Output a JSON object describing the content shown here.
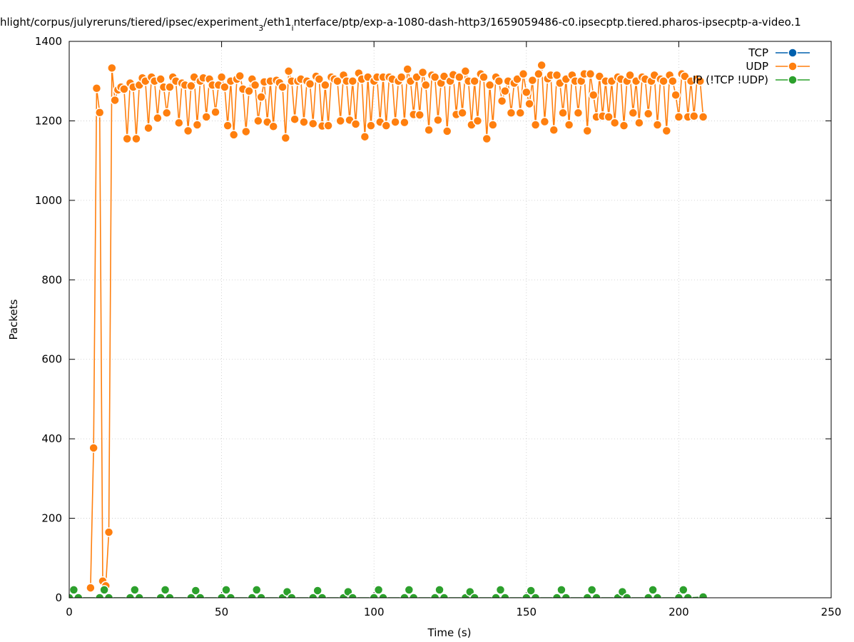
{
  "chart_data": {
    "type": "line",
    "title": [
      "hlight/corpus/julyreruns/tiered/ipsec/experiment",
      "3",
      "/eth1",
      "i",
      "nterface/ptp/exp-a-1080-dash-http3/1659059486-c0.ipsecptp.tiered.pharos-ipsecptp-a-video.1"
    ],
    "x_label": "Time (s)",
    "y_label": "Packets",
    "xlim": [
      0,
      250
    ],
    "xticks": [
      0,
      50,
      100,
      150,
      200,
      250
    ],
    "ylim": [
      0,
      1400
    ],
    "yticks": [
      0,
      200,
      400,
      600,
      800,
      1000,
      1200,
      1400
    ],
    "grid": true,
    "legend": "top-right",
    "series": [
      {
        "name": "TCP",
        "color": "#0060ad",
        "x": [],
        "values": []
      },
      {
        "name": "UDP",
        "color": "#ff7f0e",
        "x": [
          7,
          8,
          9,
          10,
          11,
          12,
          13,
          14,
          15,
          16,
          17,
          18,
          19,
          20,
          21,
          22,
          23,
          24,
          25,
          26,
          27,
          28,
          29,
          30,
          31,
          32,
          33,
          34,
          35,
          36,
          37,
          38,
          39,
          40,
          41,
          42,
          43,
          44,
          45,
          46,
          47,
          48,
          49,
          50,
          51,
          52,
          53,
          54,
          55,
          56,
          57,
          58,
          59,
          60,
          61,
          62,
          63,
          64,
          65,
          66,
          67,
          68,
          69,
          70,
          71,
          72,
          73,
          74,
          75,
          76,
          77,
          78,
          79,
          80,
          81,
          82,
          83,
          84,
          85,
          86,
          87,
          88,
          89,
          90,
          91,
          92,
          93,
          94,
          95,
          96,
          97,
          98,
          99,
          100,
          101,
          102,
          103,
          104,
          105,
          106,
          107,
          108,
          109,
          110,
          111,
          112,
          113,
          114,
          115,
          116,
          117,
          118,
          119,
          120,
          121,
          122,
          123,
          124,
          125,
          126,
          127,
          128,
          129,
          130,
          131,
          132,
          133,
          134,
          135,
          136,
          137,
          138,
          139,
          140,
          141,
          142,
          143,
          144,
          145,
          146,
          147,
          148,
          149,
          150,
          151,
          152,
          153,
          154,
          155,
          156,
          157,
          158,
          159,
          160,
          161,
          162,
          163,
          164,
          165,
          166,
          167,
          168,
          169,
          170,
          171,
          172,
          173,
          174,
          175,
          176,
          177,
          178,
          179,
          180,
          181,
          182,
          183,
          184,
          185,
          186,
          187,
          188,
          189,
          190,
          191,
          192,
          193,
          194,
          195,
          196,
          197,
          198,
          199,
          200,
          201,
          202,
          203,
          204,
          205,
          206,
          207,
          208
        ],
        "values": [
          25,
          377,
          1282,
          1221,
          42,
          30,
          165,
          1333,
          1252,
          1278,
          1285,
          1280,
          1155,
          1295,
          1285,
          1155,
          1290,
          1308,
          1300,
          1182,
          1310,
          1300,
          1207,
          1305,
          1285,
          1220,
          1285,
          1310,
          1300,
          1195,
          1295,
          1290,
          1175,
          1288,
          1310,
          1190,
          1300,
          1308,
          1210,
          1305,
          1290,
          1222,
          1290,
          1310,
          1285,
          1188,
          1300,
          1165,
          1305,
          1313,
          1280,
          1173,
          1275,
          1305,
          1290,
          1200,
          1260,
          1298,
          1197,
          1300,
          1186,
          1302,
          1296,
          1285,
          1157,
          1325,
          1300,
          1204,
          1300,
          1305,
          1197,
          1300,
          1293,
          1193,
          1312,
          1305,
          1187,
          1290,
          1188,
          1310,
          1305,
          1300,
          1200,
          1315,
          1300,
          1202,
          1300,
          1192,
          1320,
          1305,
          1160,
          1310,
          1188,
          1300,
          1310,
          1197,
          1310,
          1188,
          1310,
          1305,
          1197,
          1300,
          1310,
          1196,
          1330,
          1300,
          1216,
          1310,
          1215,
          1322,
          1290,
          1177,
          1315,
          1310,
          1202,
          1295,
          1312,
          1174,
          1300,
          1316,
          1216,
          1310,
          1220,
          1325,
          1300,
          1190,
          1300,
          1200,
          1318,
          1310,
          1155,
          1290,
          1190,
          1310,
          1300,
          1250,
          1275,
          1300,
          1220,
          1295,
          1305,
          1220,
          1318,
          1272,
          1243,
          1302,
          1190,
          1318,
          1340,
          1198,
          1306,
          1315,
          1177,
          1315,
          1295,
          1220,
          1305,
          1190,
          1315,
          1300,
          1220,
          1300,
          1318,
          1175,
          1318,
          1265,
          1210,
          1312,
          1212,
          1300,
          1210,
          1300,
          1195,
          1310,
          1305,
          1188,
          1300,
          1315,
          1220,
          1300,
          1195,
          1310,
          1305,
          1218,
          1300,
          1315,
          1190,
          1305,
          1300,
          1175,
          1315,
          1300,
          1265,
          1210,
          1318,
          1312,
          1210,
          1300,
          1212,
          1305,
          1300,
          1210
        ]
      },
      {
        "name": "IP (!TCP  !UDP)",
        "color": "#2ca02c",
        "x": [
          0,
          1.5,
          3,
          10,
          11.5,
          13,
          20,
          21.5,
          23,
          30,
          31.5,
          33,
          40,
          41.5,
          43,
          50,
          51.5,
          53,
          60,
          61.5,
          63,
          70,
          71.5,
          73,
          80,
          81.5,
          83,
          90,
          91.5,
          93,
          100,
          101.5,
          103,
          110,
          111.5,
          113,
          120,
          121.5,
          123,
          130,
          131.5,
          133,
          140,
          141.5,
          143,
          150,
          151.5,
          153,
          160,
          161.5,
          163,
          170,
          171.5,
          173,
          180,
          181.5,
          183,
          190,
          191.5,
          193,
          200,
          201.5,
          203,
          208
        ],
        "values": [
          0,
          20,
          0,
          0,
          20,
          0,
          0,
          20,
          0,
          0,
          20,
          0,
          0,
          18,
          0,
          0,
          20,
          0,
          0,
          20,
          0,
          0,
          15,
          0,
          0,
          18,
          0,
          0,
          15,
          0,
          0,
          20,
          0,
          0,
          20,
          0,
          0,
          20,
          0,
          0,
          15,
          0,
          0,
          20,
          0,
          0,
          18,
          0,
          0,
          20,
          0,
          0,
          20,
          0,
          0,
          15,
          0,
          0,
          20,
          0,
          0,
          20,
          0,
          2
        ]
      }
    ]
  }
}
